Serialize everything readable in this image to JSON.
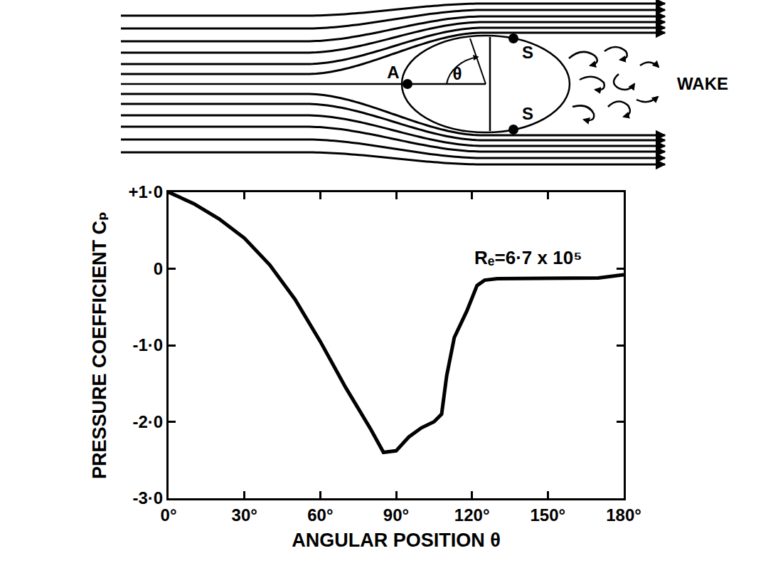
{
  "chart_data": {
    "type": "line",
    "x": [
      0,
      10,
      20,
      30,
      40,
      50,
      60,
      70,
      80,
      85,
      90,
      95,
      100,
      105,
      108,
      110,
      113,
      118,
      122,
      125,
      130,
      150,
      170,
      180
    ],
    "values": [
      1.0,
      0.85,
      0.65,
      0.4,
      0.05,
      -0.4,
      -0.95,
      -1.55,
      -2.1,
      -2.4,
      -2.38,
      -2.2,
      -2.08,
      -2.0,
      -1.9,
      -1.4,
      -0.9,
      -0.55,
      -0.22,
      -0.15,
      -0.13,
      -0.12,
      -0.12,
      -0.08
    ],
    "color": "#000000",
    "xlim": [
      0,
      180
    ],
    "xticks": [
      {
        "value": 0,
        "label": "0°"
      },
      {
        "value": 30,
        "label": "30°"
      },
      {
        "value": 60,
        "label": "60°"
      },
      {
        "value": 90,
        "label": "90°"
      },
      {
        "value": 120,
        "label": "120°"
      },
      {
        "value": 150,
        "label": "150°"
      },
      {
        "value": 180,
        "label": "180°"
      }
    ],
    "ylim": [
      -3,
      1
    ],
    "yticks": [
      {
        "value": 1,
        "label": "+1·0"
      },
      0,
      {
        "value": -1,
        "label": "-1·0"
      },
      {
        "value": -2,
        "label": "-2·0"
      },
      {
        "value": -3,
        "label": "-3·0"
      }
    ],
    "x_label": "ANGULAR POSITION θ",
    "y_label": "PRESSURE COEFFICIENT Cₚ",
    "annotations": [
      "Rₑ=6·7 x 10⁵"
    ],
    "grid": false
  },
  "diagram": {
    "point_label": "A",
    "angle_label": "θ",
    "separation_labels": [
      "S",
      "S"
    ],
    "wake_label": "WAKE"
  }
}
